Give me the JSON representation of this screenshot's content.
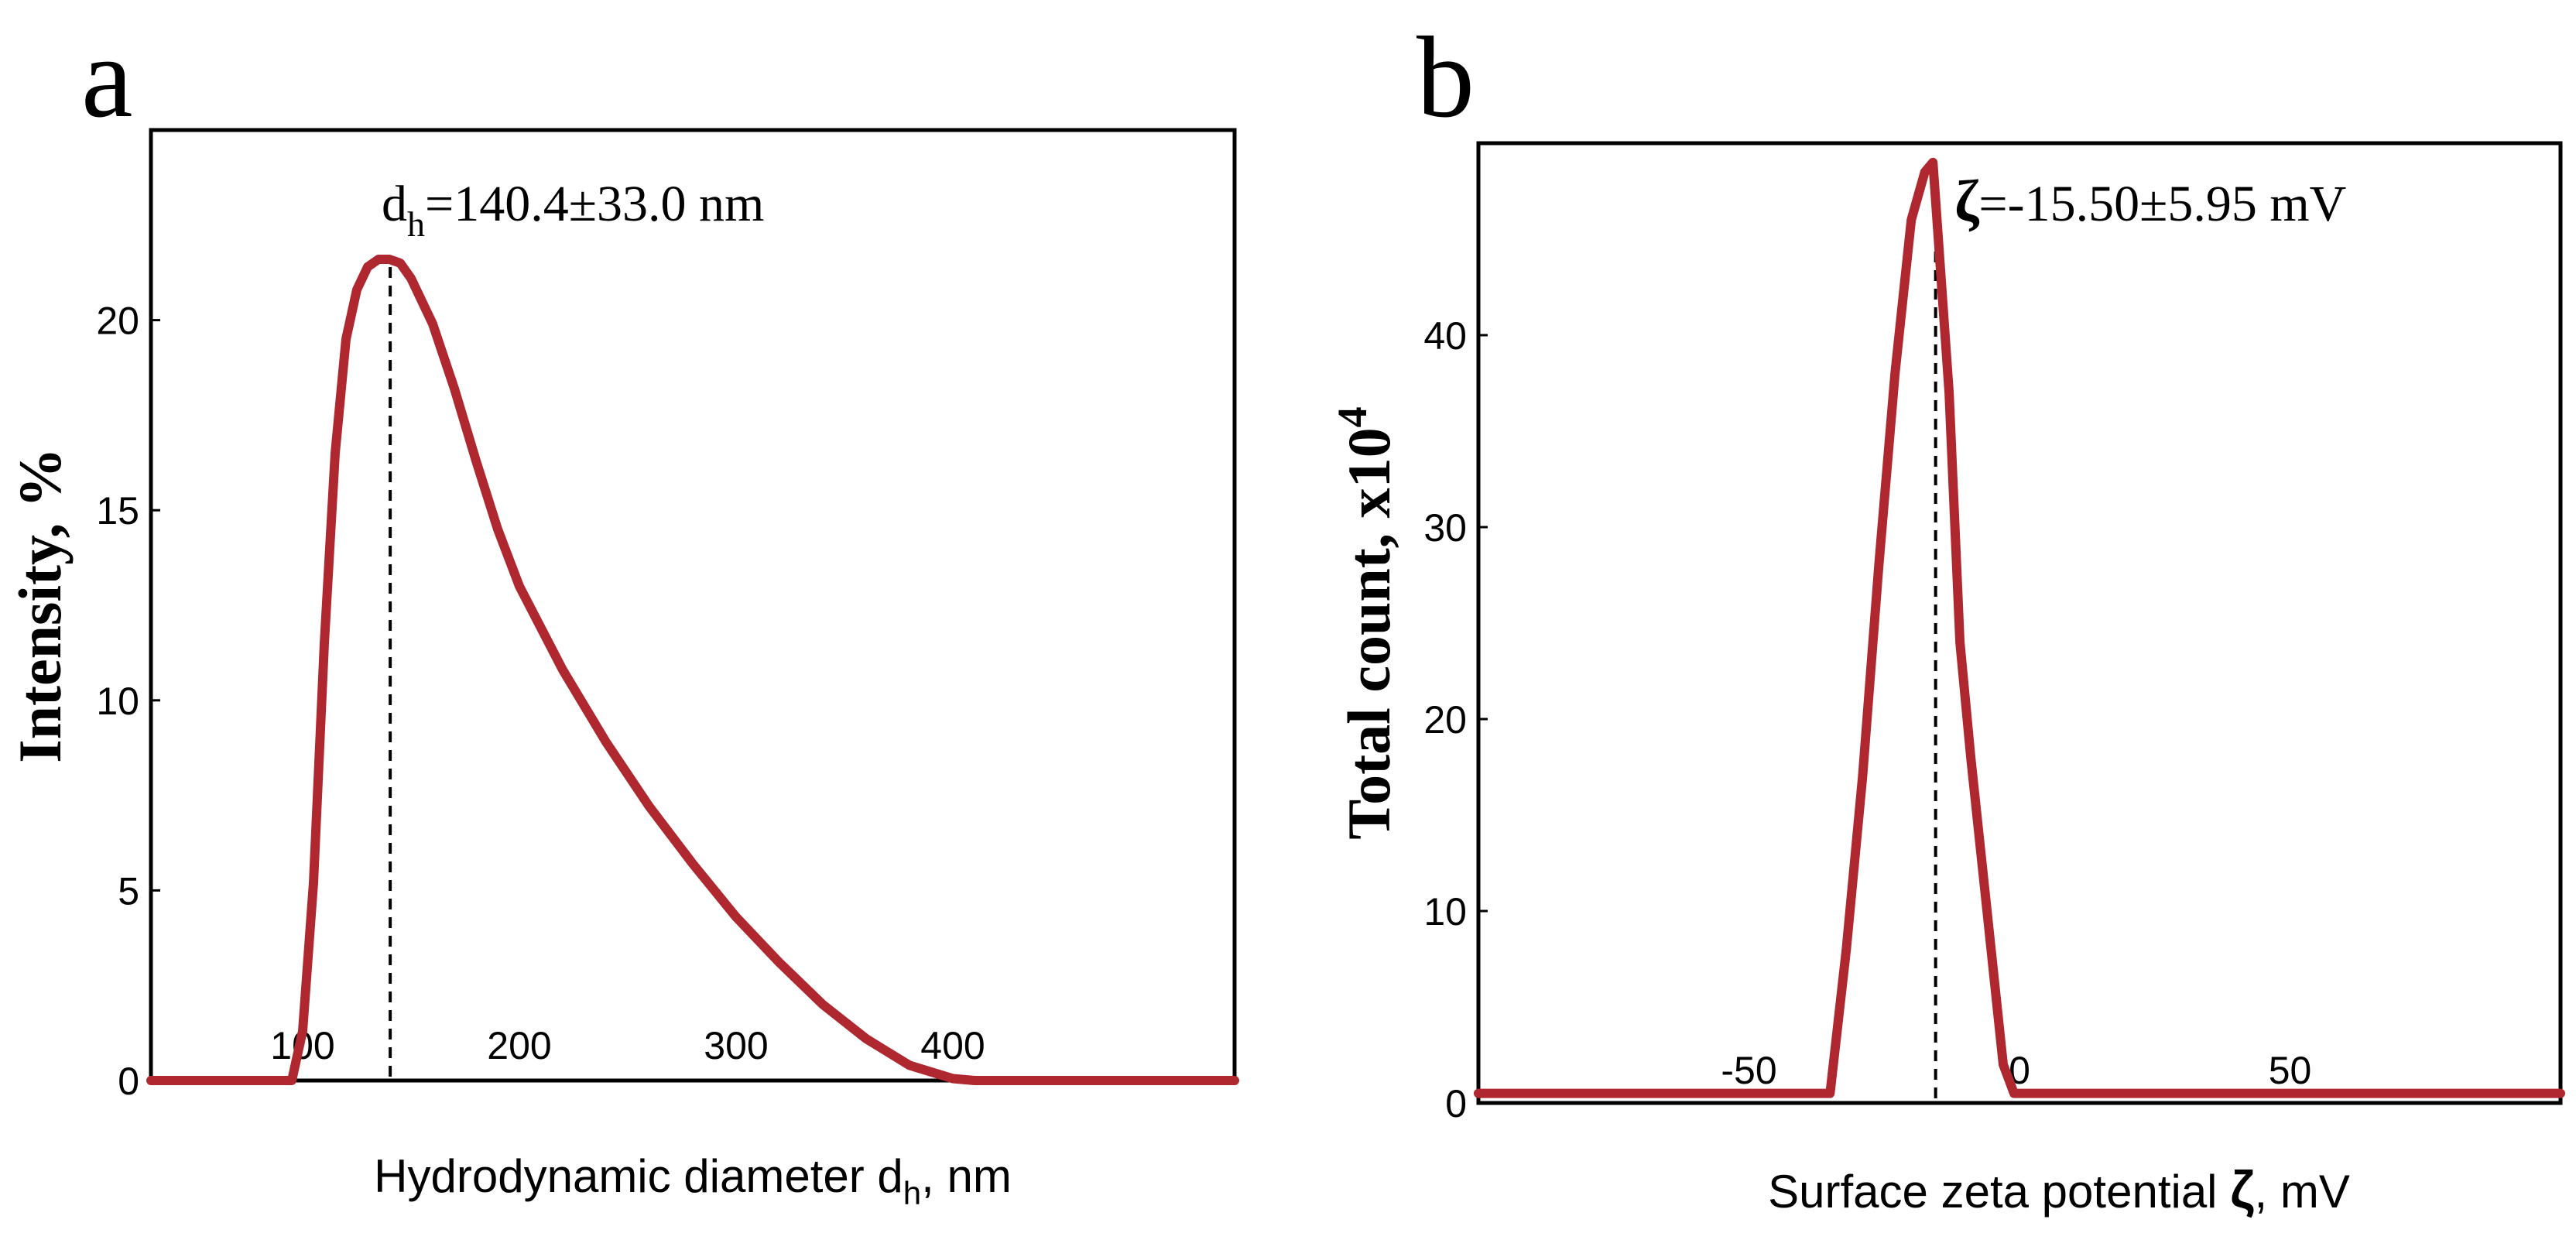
{
  "chart_data": [
    {
      "panel_label": "a",
      "type": "line",
      "title": "",
      "xlabel": "Hydrodynamic diameter d",
      "xlabel_sub": "h",
      "xlabel_suffix": ", nm",
      "ylabel": "Intensity, %",
      "xlim": [
        30,
        530
      ],
      "ylim": [
        0,
        25
      ],
      "x_ticks": [
        "100",
        "200",
        "300",
        "400"
      ],
      "x_tick_values": [
        100,
        200,
        300,
        400
      ],
      "y_ticks": [
        "0",
        "5",
        "10",
        "15",
        "20"
      ],
      "y_tick_values": [
        0,
        5,
        10,
        15,
        20
      ],
      "annotation_main": "d",
      "annotation_sub": "h",
      "annotation_rest": "=140.4±33.0 nm",
      "marker_x": 140.4,
      "series": [
        {
          "name": "intensity",
          "color": "#b0282f",
          "x": [
            30,
            95,
            100,
            105,
            110,
            115,
            120,
            125,
            130,
            135,
            140,
            145,
            150,
            160,
            170,
            180,
            190,
            200,
            220,
            240,
            260,
            280,
            300,
            320,
            340,
            360,
            380,
            400,
            410,
            420,
            440,
            480,
            530
          ],
          "y": [
            0,
            0,
            1.3,
            5.2,
            11.5,
            16.5,
            19.5,
            20.8,
            21.4,
            21.6,
            21.6,
            21.5,
            21.1,
            19.9,
            18.2,
            16.3,
            14.5,
            13.0,
            10.8,
            8.9,
            7.2,
            5.7,
            4.3,
            3.1,
            2.0,
            1.1,
            0.4,
            0.05,
            0,
            0,
            0,
            0,
            0
          ]
        }
      ]
    },
    {
      "panel_label": "b",
      "type": "line",
      "title": "",
      "xlabel": "Surface zeta potential ",
      "xlabel_symbol": "ζ",
      "xlabel_suffix": ", mV",
      "ylabel": "Total count, x10",
      "ylabel_sup": "4",
      "xlim": [
        -100,
        100
      ],
      "ylim": [
        0,
        50
      ],
      "x_ticks": [
        "-50",
        "0",
        "50"
      ],
      "x_tick_values": [
        -50,
        0,
        50
      ],
      "y_ticks": [
        "0",
        "10",
        "20",
        "30",
        "40"
      ],
      "y_tick_values": [
        0,
        10,
        20,
        30,
        40
      ],
      "annotation_symbol": "ζ",
      "annotation_rest": "=-15.50±5.95 mV",
      "marker_x": -15.5,
      "series": [
        {
          "name": "total count",
          "color": "#b0282f",
          "x": [
            -100,
            -35,
            -32,
            -29,
            -26,
            -23,
            -20,
            -17.5,
            -16,
            -15,
            -13,
            -11,
            -9,
            -6,
            -3,
            -1,
            100
          ],
          "y": [
            0.5,
            0.5,
            8,
            17,
            28,
            38,
            46,
            48.5,
            49,
            45,
            37,
            24,
            18,
            10,
            2,
            0.5,
            0.5
          ]
        }
      ]
    }
  ]
}
